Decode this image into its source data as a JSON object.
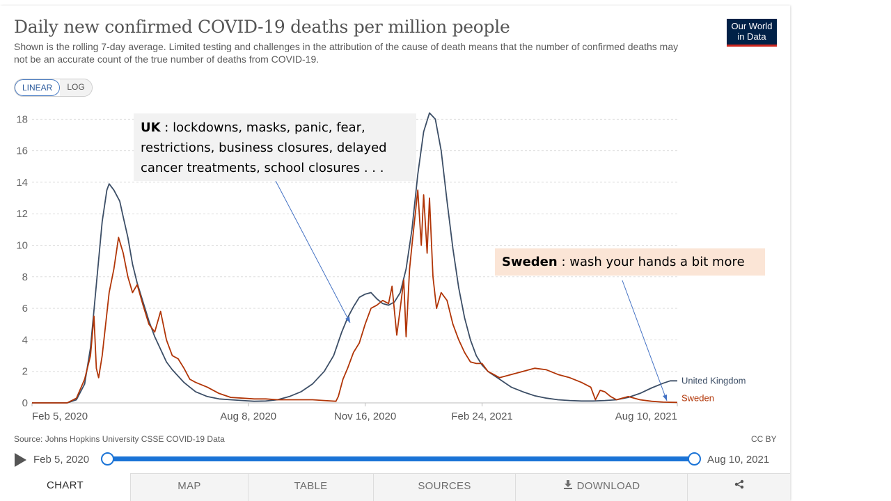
{
  "header": {
    "title": "Daily new confirmed COVID-19 deaths per million people",
    "subtitle": "Shown is the rolling 7-day average. Limited testing and challenges in the attribution of the cause of death means that the number of confirmed deaths may not be an accurate count of the true number of deaths from COVID-19.",
    "logo_line1": "Our World",
    "logo_line2": "in Data"
  },
  "scale_toggle": {
    "linear": "LINEAR",
    "log": "LOG",
    "selected": "LINEAR"
  },
  "annotations": {
    "uk_label": "UK",
    "uk_text": " : lockdowns, masks, panic, fear, restrictions, business closures, delayed cancer treatments, school closures . . .",
    "sweden_label": "Sweden",
    "sweden_text": " : wash your hands a bit more"
  },
  "footer": {
    "source": "Source: Johns Hopkins University CSSE COVID-19 Data",
    "license": "CC BY"
  },
  "timeline": {
    "start": "Feb 5, 2020",
    "end": "Aug 10, 2021"
  },
  "tabs": [
    {
      "label": "CHART",
      "active": true
    },
    {
      "label": "MAP"
    },
    {
      "label": "TABLE"
    },
    {
      "label": "SOURCES"
    },
    {
      "label": "DOWNLOAD",
      "icon": "download-icon"
    },
    {
      "label": "",
      "icon": "share-icon"
    }
  ],
  "colors": {
    "uk": "#3c4e66",
    "sweden": "#b13507",
    "grid": "#dddddd",
    "accent": "#1a73d6"
  },
  "chart_data": {
    "type": "line",
    "title": "Daily new confirmed COVID-19 deaths per million people",
    "xlabel": "",
    "ylabel": "",
    "x_ticks": [
      "Feb 5, 2020",
      "Aug 8, 2020",
      "Nov 16, 2020",
      "Feb 24, 2021",
      "Aug 10, 2021"
    ],
    "x_tick_days": [
      0,
      185,
      285,
      385,
      552
    ],
    "y_ticks": [
      0,
      2,
      4,
      6,
      8,
      10,
      12,
      14,
      16,
      18
    ],
    "ylim": [
      0,
      18.5
    ],
    "xlim_days": [
      0,
      552
    ],
    "grid": true,
    "legend": "line-end labels",
    "series": [
      {
        "name": "United Kingdom",
        "points": [
          [
            0,
            0
          ],
          [
            30,
            0
          ],
          [
            38,
            0.2
          ],
          [
            45,
            1.2
          ],
          [
            50,
            3.5
          ],
          [
            55,
            7.5
          ],
          [
            60,
            11.5
          ],
          [
            64,
            13.5
          ],
          [
            66,
            13.9
          ],
          [
            70,
            13.5
          ],
          [
            75,
            12.8
          ],
          [
            78,
            11.8
          ],
          [
            82,
            10.5
          ],
          [
            86,
            8.8
          ],
          [
            90,
            7.6
          ],
          [
            95,
            6.4
          ],
          [
            100,
            5.2
          ],
          [
            105,
            4.2
          ],
          [
            110,
            3.4
          ],
          [
            115,
            2.6
          ],
          [
            120,
            2.1
          ],
          [
            125,
            1.7
          ],
          [
            130,
            1.3
          ],
          [
            135,
            1.0
          ],
          [
            140,
            0.7
          ],
          [
            150,
            0.4
          ],
          [
            160,
            0.25
          ],
          [
            170,
            0.2
          ],
          [
            180,
            0.15
          ],
          [
            190,
            0.1
          ],
          [
            200,
            0.12
          ],
          [
            210,
            0.2
          ],
          [
            220,
            0.4
          ],
          [
            230,
            0.7
          ],
          [
            240,
            1.2
          ],
          [
            250,
            2.0
          ],
          [
            258,
            3.0
          ],
          [
            265,
            4.5
          ],
          [
            270,
            5.4
          ],
          [
            275,
            6.1
          ],
          [
            280,
            6.7
          ],
          [
            285,
            6.9
          ],
          [
            290,
            7.0
          ],
          [
            295,
            6.6
          ],
          [
            300,
            6.3
          ],
          [
            305,
            6.2
          ],
          [
            310,
            6.4
          ],
          [
            315,
            7.0
          ],
          [
            320,
            8.5
          ],
          [
            325,
            11.0
          ],
          [
            330,
            14.5
          ],
          [
            335,
            17.2
          ],
          [
            340,
            18.4
          ],
          [
            345,
            18.0
          ],
          [
            350,
            16.0
          ],
          [
            355,
            12.8
          ],
          [
            360,
            9.8
          ],
          [
            365,
            7.3
          ],
          [
            370,
            5.4
          ],
          [
            375,
            4.0
          ],
          [
            380,
            3.0
          ],
          [
            385,
            2.4
          ],
          [
            390,
            2.0
          ],
          [
            400,
            1.5
          ],
          [
            410,
            1.0
          ],
          [
            420,
            0.7
          ],
          [
            430,
            0.45
          ],
          [
            440,
            0.3
          ],
          [
            450,
            0.2
          ],
          [
            460,
            0.15
          ],
          [
            470,
            0.12
          ],
          [
            480,
            0.12
          ],
          [
            490,
            0.15
          ],
          [
            500,
            0.2
          ],
          [
            510,
            0.35
          ],
          [
            520,
            0.6
          ],
          [
            530,
            0.95
          ],
          [
            540,
            1.25
          ],
          [
            546,
            1.4
          ],
          [
            552,
            1.4
          ]
        ]
      },
      {
        "name": "Sweden",
        "points": [
          [
            0,
            0
          ],
          [
            30,
            0
          ],
          [
            38,
            0.3
          ],
          [
            45,
            1.5
          ],
          [
            50,
            3.0
          ],
          [
            53,
            5.5
          ],
          [
            55,
            2.2
          ],
          [
            57,
            1.6
          ],
          [
            60,
            3.0
          ],
          [
            63,
            5.0
          ],
          [
            66,
            7.0
          ],
          [
            70,
            8.5
          ],
          [
            74,
            10.5
          ],
          [
            78,
            9.5
          ],
          [
            82,
            8.0
          ],
          [
            86,
            7.0
          ],
          [
            90,
            7.5
          ],
          [
            95,
            6.2
          ],
          [
            100,
            5.0
          ],
          [
            105,
            4.5
          ],
          [
            110,
            5.8
          ],
          [
            115,
            4.0
          ],
          [
            120,
            3.0
          ],
          [
            125,
            2.8
          ],
          [
            130,
            2.2
          ],
          [
            135,
            1.5
          ],
          [
            140,
            1.3
          ],
          [
            150,
            1.0
          ],
          [
            160,
            0.6
          ],
          [
            170,
            0.35
          ],
          [
            180,
            0.3
          ],
          [
            190,
            0.25
          ],
          [
            200,
            0.25
          ],
          [
            210,
            0.2
          ],
          [
            220,
            0.2
          ],
          [
            230,
            0.2
          ],
          [
            240,
            0.2
          ],
          [
            250,
            0.15
          ],
          [
            260,
            0.1
          ],
          [
            262,
            0.4
          ],
          [
            266,
            1.5
          ],
          [
            270,
            2.2
          ],
          [
            275,
            3.2
          ],
          [
            280,
            3.8
          ],
          [
            285,
            5.0
          ],
          [
            290,
            6.0
          ],
          [
            295,
            6.2
          ],
          [
            300,
            6.5
          ],
          [
            305,
            6.3
          ],
          [
            308,
            7.4
          ],
          [
            312,
            4.3
          ],
          [
            315,
            6.0
          ],
          [
            318,
            7.8
          ],
          [
            320,
            4.2
          ],
          [
            323,
            8.5
          ],
          [
            325,
            10.0
          ],
          [
            330,
            13.5
          ],
          [
            333,
            10.0
          ],
          [
            335,
            13.2
          ],
          [
            338,
            9.5
          ],
          [
            340,
            13.0
          ],
          [
            343,
            8.0
          ],
          [
            346,
            6.0
          ],
          [
            350,
            7.0
          ],
          [
            355,
            6.5
          ],
          [
            360,
            5.0
          ],
          [
            365,
            4.0
          ],
          [
            370,
            3.2
          ],
          [
            375,
            2.6
          ],
          [
            380,
            2.5
          ],
          [
            385,
            2.5
          ],
          [
            390,
            2.0
          ],
          [
            395,
            1.8
          ],
          [
            400,
            1.6
          ],
          [
            410,
            1.8
          ],
          [
            420,
            2.0
          ],
          [
            430,
            2.2
          ],
          [
            440,
            2.1
          ],
          [
            450,
            1.8
          ],
          [
            460,
            1.6
          ],
          [
            470,
            1.3
          ],
          [
            478,
            1.0
          ],
          [
            482,
            0.2
          ],
          [
            486,
            0.8
          ],
          [
            490,
            0.7
          ],
          [
            495,
            0.4
          ],
          [
            500,
            0.2
          ],
          [
            510,
            0.4
          ],
          [
            520,
            0.2
          ],
          [
            530,
            0.1
          ],
          [
            540,
            0.05
          ],
          [
            552,
            0.03
          ]
        ]
      }
    ]
  }
}
